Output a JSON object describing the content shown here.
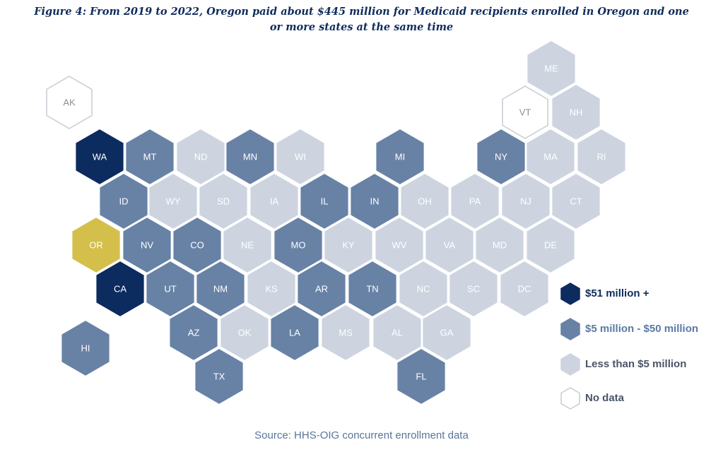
{
  "title": "Figure 4: From 2019 to 2022, Oregon paid about $445 million for Medicaid recipients enrolled in Oregon and one or more states at the same time",
  "source": "Source: HHS-OIG concurrent enrollment data",
  "categories": {
    "dark": {
      "label": "$51 million +",
      "fill": "#0c2b5e",
      "text": "#ffffff",
      "label_color": "#0f2c5c"
    },
    "mid": {
      "label": "$5 million - $50 million",
      "fill": "#6882a6",
      "text": "#ffffff",
      "label_color": "#5b7aa2"
    },
    "light": {
      "label": "Less than $5 million",
      "fill": "#cdd4e0",
      "text": "#ffffff",
      "label_color": "#4a5566"
    },
    "none": {
      "label": "No data",
      "fill": "#ffffff",
      "text": "#8a8f96",
      "label_color": "#4a5566"
    },
    "oregon": {
      "label": "",
      "fill": "#d4bf4b",
      "text": "#ffffff",
      "label_color": "#000000"
    }
  },
  "legend_order": [
    "dark",
    "mid",
    "light",
    "none"
  ],
  "states": [
    {
      "abbr": "ME",
      "cat": "light"
    },
    {
      "abbr": "AK",
      "cat": "none"
    },
    {
      "abbr": "VT",
      "cat": "none"
    },
    {
      "abbr": "NH",
      "cat": "light"
    },
    {
      "abbr": "WA",
      "cat": "dark"
    },
    {
      "abbr": "MT",
      "cat": "mid"
    },
    {
      "abbr": "ND",
      "cat": "light"
    },
    {
      "abbr": "MN",
      "cat": "mid"
    },
    {
      "abbr": "WI",
      "cat": "light"
    },
    {
      "abbr": "MI",
      "cat": "mid"
    },
    {
      "abbr": "NY",
      "cat": "mid"
    },
    {
      "abbr": "MA",
      "cat": "light"
    },
    {
      "abbr": "RI",
      "cat": "light"
    },
    {
      "abbr": "ID",
      "cat": "mid"
    },
    {
      "abbr": "WY",
      "cat": "light"
    },
    {
      "abbr": "SD",
      "cat": "light"
    },
    {
      "abbr": "IA",
      "cat": "light"
    },
    {
      "abbr": "IL",
      "cat": "mid"
    },
    {
      "abbr": "IN",
      "cat": "mid"
    },
    {
      "abbr": "OH",
      "cat": "light"
    },
    {
      "abbr": "PA",
      "cat": "light"
    },
    {
      "abbr": "NJ",
      "cat": "light"
    },
    {
      "abbr": "CT",
      "cat": "light"
    },
    {
      "abbr": "OR",
      "cat": "oregon"
    },
    {
      "abbr": "NV",
      "cat": "mid"
    },
    {
      "abbr": "CO",
      "cat": "mid"
    },
    {
      "abbr": "NE",
      "cat": "light"
    },
    {
      "abbr": "MO",
      "cat": "mid"
    },
    {
      "abbr": "KY",
      "cat": "light"
    },
    {
      "abbr": "WV",
      "cat": "light"
    },
    {
      "abbr": "VA",
      "cat": "light"
    },
    {
      "abbr": "MD",
      "cat": "light"
    },
    {
      "abbr": "DE",
      "cat": "light"
    },
    {
      "abbr": "CA",
      "cat": "dark"
    },
    {
      "abbr": "UT",
      "cat": "mid"
    },
    {
      "abbr": "NM",
      "cat": "mid"
    },
    {
      "abbr": "KS",
      "cat": "light"
    },
    {
      "abbr": "AR",
      "cat": "mid"
    },
    {
      "abbr": "TN",
      "cat": "mid"
    },
    {
      "abbr": "NC",
      "cat": "light"
    },
    {
      "abbr": "SC",
      "cat": "light"
    },
    {
      "abbr": "DC",
      "cat": "light"
    },
    {
      "abbr": "AZ",
      "cat": "mid"
    },
    {
      "abbr": "OK",
      "cat": "light"
    },
    {
      "abbr": "LA",
      "cat": "mid"
    },
    {
      "abbr": "MS",
      "cat": "light"
    },
    {
      "abbr": "AL",
      "cat": "light"
    },
    {
      "abbr": "GA",
      "cat": "light"
    },
    {
      "abbr": "HI",
      "cat": "mid"
    },
    {
      "abbr": "TX",
      "cat": "mid"
    },
    {
      "abbr": "FL",
      "cat": "mid"
    }
  ]
}
